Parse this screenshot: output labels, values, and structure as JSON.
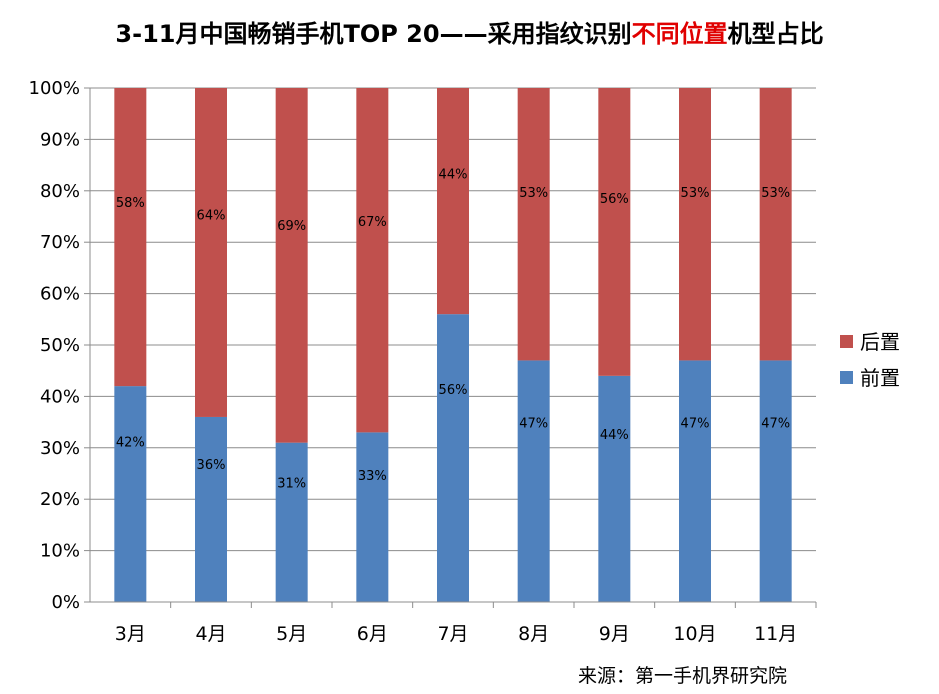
{
  "title": {
    "prefix": "3-11月中国畅销手机TOP 20——采用指纹识别",
    "highlight": "不同位置",
    "suffix": "机型占比"
  },
  "source": "来源：第一手机界研究院",
  "colors": {
    "back": "#C0504D",
    "front": "#4F81BD",
    "title_highlight": "#E00000"
  },
  "chart_data": {
    "type": "bar",
    "stacked": true,
    "percent": true,
    "title": "3-11月中国畅销手机TOP 20——采用指纹识别不同位置机型占比",
    "categories": [
      "3月",
      "4月",
      "5月",
      "6月",
      "7月",
      "8月",
      "9月",
      "10月",
      "11月"
    ],
    "series": [
      {
        "name": "前置",
        "values": [
          42,
          36,
          31,
          33,
          56,
          47,
          44,
          47,
          47
        ],
        "labels": [
          "42%",
          "36%",
          "31%",
          "33%",
          "56%",
          "47%",
          "44%",
          "47%",
          "47%"
        ]
      },
      {
        "name": "后置",
        "values": [
          58,
          64,
          69,
          67,
          44,
          53,
          56,
          53,
          53
        ],
        "labels": [
          "58%",
          "64%",
          "69%",
          "67%",
          "44%",
          "53%",
          "56%",
          "53%",
          "53%"
        ]
      }
    ],
    "yticks": [
      "0%",
      "10%",
      "20%",
      "30%",
      "40%",
      "50%",
      "60%",
      "70%",
      "80%",
      "90%",
      "100%"
    ],
    "ylim": [
      0,
      100
    ],
    "grid": true,
    "legend": "right"
  }
}
